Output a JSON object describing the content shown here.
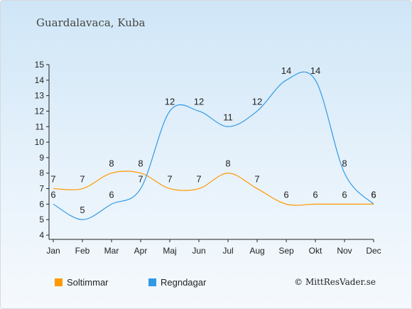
{
  "title": "Guardalavaca, Kuba",
  "copyright": "© MittResVader.se",
  "chart_data": {
    "type": "line",
    "categories": [
      "Jan",
      "Feb",
      "Mar",
      "Apr",
      "Maj",
      "Jun",
      "Jul",
      "Aug",
      "Sep",
      "Okt",
      "Nov",
      "Dec"
    ],
    "ylim": [
      4,
      15
    ],
    "yticks": [
      "4",
      "5",
      "6",
      "7",
      "8",
      "9",
      "10",
      "11",
      "12",
      "13",
      "14",
      "15"
    ],
    "series": [
      {
        "name": "Soltimmar",
        "color": "#ff9900",
        "values": [
          7,
          7,
          8,
          8,
          7,
          7,
          8,
          7,
          6,
          6,
          6,
          6
        ]
      },
      {
        "name": "Regndagar",
        "color": "#3399e6",
        "values": [
          6,
          5,
          6,
          7,
          12,
          12,
          11,
          12,
          14,
          14,
          8,
          6
        ]
      }
    ],
    "legend": "bottom-left"
  }
}
